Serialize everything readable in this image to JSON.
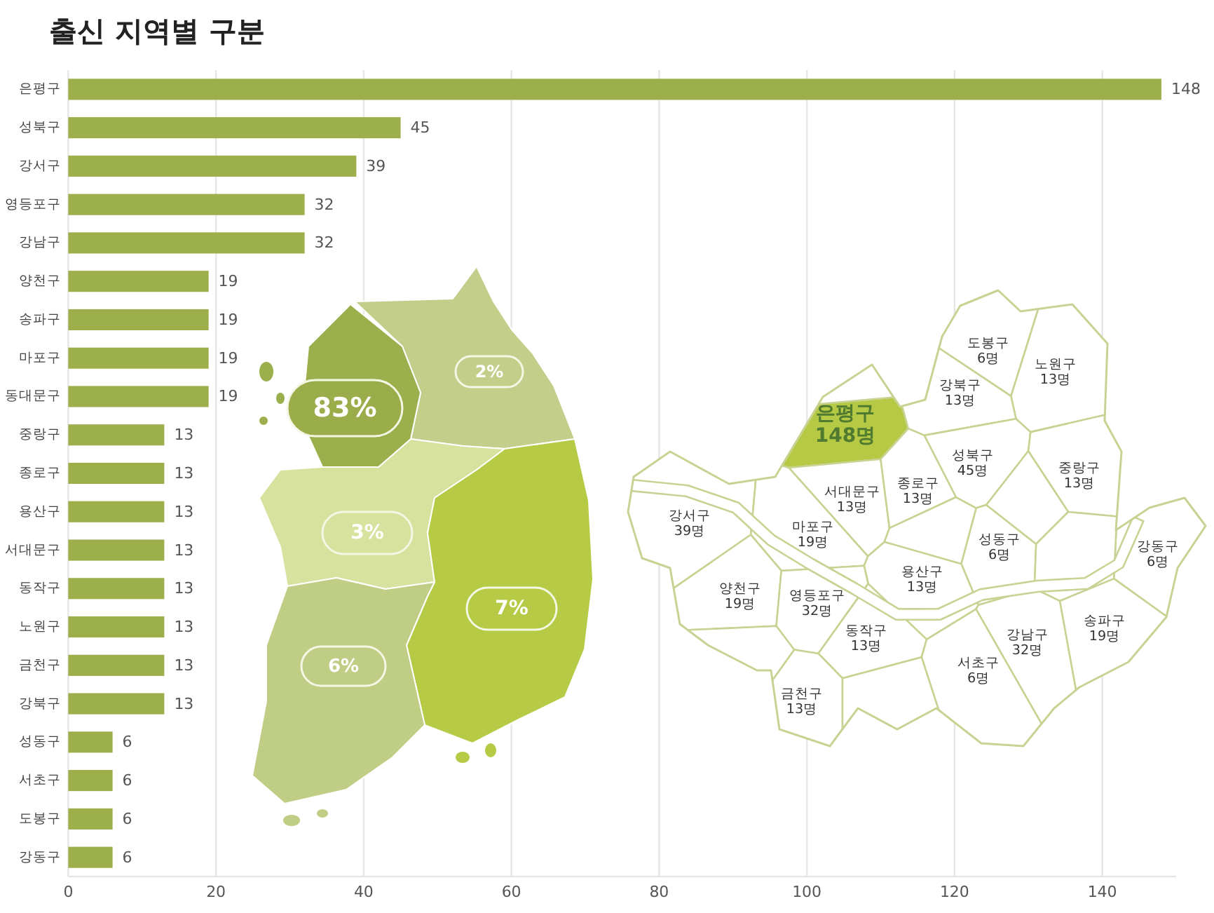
{
  "chart_data": {
    "type": "bar",
    "title": "출신 지역별 구분",
    "orientation": "horizontal",
    "categories": [
      "은평구",
      "성북구",
      "강서구",
      "영등포구",
      "강남구",
      "양천구",
      "송파구",
      "마포구",
      "동대문구",
      "중랑구",
      "종로구",
      "용산구",
      "서대문구",
      "동작구",
      "노원구",
      "금천구",
      "강북구",
      "성동구",
      "서초구",
      "도봉구",
      "강동구"
    ],
    "values": [
      148,
      45,
      39,
      32,
      32,
      19,
      19,
      19,
      19,
      13,
      13,
      13,
      13,
      13,
      13,
      13,
      13,
      6,
      6,
      6,
      6
    ],
    "color": "#9caf4b",
    "xlim": [
      0,
      150
    ],
    "xticks": [
      0,
      20,
      40,
      60,
      80,
      100,
      120,
      140
    ],
    "grid": "x",
    "data_labels": true,
    "annotations": [
      "83%",
      "2%",
      "3%",
      "7%",
      "6%",
      "은평구 148명",
      "도봉구 6명",
      "노원구 13명",
      "강북구 13명",
      "성북구 45명",
      "중랑구 13명",
      "서대문구 13명",
      "종로구 13명",
      "강서구 39명",
      "마포구 19명",
      "성동구 6명",
      "강동구 6명",
      "용산구 13명",
      "양천구 19명",
      "영등포구 32명",
      "동작구 13명",
      "강남구 32명",
      "송파구 19명",
      "서초구 6명",
      "금천구 13명"
    ]
  }
}
